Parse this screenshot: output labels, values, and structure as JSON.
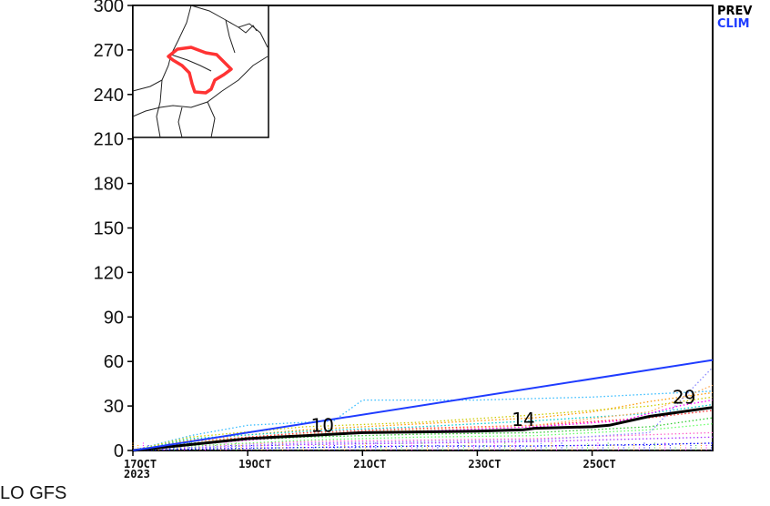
{
  "chart_data": {
    "type": "line",
    "ylim": [
      0,
      300
    ],
    "y_ticks": [
      "0",
      "30",
      "60",
      "90",
      "120",
      "150",
      "180",
      "210",
      "240",
      "270",
      "300"
    ],
    "x_ticks": [
      {
        "day": 17,
        "label": "17OCT",
        "sublabel": "2023"
      },
      {
        "day": 19,
        "label": "19OCT"
      },
      {
        "day": 21,
        "label": "21OCT"
      },
      {
        "day": 23,
        "label": "23OCT"
      },
      {
        "day": 25,
        "label": "25OCT"
      }
    ],
    "x_end_day": 27.1,
    "grid": false,
    "legend": [
      {
        "label": "PREV",
        "color": "#000000"
      },
      {
        "label": "CLIM",
        "color": "#1f3cff"
      }
    ],
    "series": [
      {
        "name": "PREV",
        "color": "#000000",
        "style": "solid",
        "x": [
          17,
          18,
          19,
          19.5,
          20,
          21,
          22,
          23,
          23.8,
          24,
          25,
          25.3,
          26,
          27.1
        ],
        "values": [
          0,
          4,
          8,
          9,
          10,
          12,
          12.5,
          13,
          14,
          15,
          16,
          17,
          23,
          29
        ]
      },
      {
        "name": "CLIM",
        "color": "#1f3cff",
        "style": "solid",
        "x": [
          17,
          27.1
        ],
        "values": [
          0,
          61
        ]
      }
    ],
    "ensemble_members": [
      {
        "color": "#ff66cc",
        "x": [
          17,
          18,
          20,
          22,
          24,
          25.5,
          27.1
        ],
        "values": [
          0,
          3,
          6,
          7,
          8,
          10,
          12
        ]
      },
      {
        "color": "#33bbff",
        "x": [
          17,
          18,
          19,
          20.5,
          21,
          23,
          24,
          25,
          26,
          27.1
        ],
        "values": [
          0,
          10,
          17,
          20,
          34,
          34,
          35,
          36,
          38,
          40
        ]
      },
      {
        "color": "#ff9900",
        "x": [
          17,
          18,
          20,
          22,
          24,
          25,
          26,
          27.1
        ],
        "values": [
          0,
          7,
          14,
          18,
          22,
          26,
          33,
          39
        ]
      },
      {
        "color": "#33cc33",
        "x": [
          17,
          18,
          20,
          22,
          24,
          26,
          27.1
        ],
        "values": [
          0,
          5,
          9,
          11,
          12,
          16,
          22
        ]
      },
      {
        "color": "#aa33ff",
        "x": [
          17,
          18,
          20,
          22,
          24,
          26,
          27.1
        ],
        "values": [
          0,
          2,
          4,
          5,
          6,
          8,
          9
        ]
      },
      {
        "color": "#0000ff",
        "x": [
          17,
          18,
          20,
          22,
          24,
          26,
          27.1
        ],
        "values": [
          0,
          1,
          2,
          3,
          3,
          4,
          5
        ]
      },
      {
        "color": "#ff3333",
        "x": [
          17,
          18,
          20,
          22,
          24,
          26,
          27.1
        ],
        "values": [
          0,
          6,
          12,
          15,
          17,
          22,
          27
        ]
      },
      {
        "color": "#00cccc",
        "x": [
          17,
          18,
          20,
          22,
          24,
          26,
          27.1
        ],
        "values": [
          0,
          8,
          13,
          16,
          20,
          25,
          31
        ]
      },
      {
        "color": "#cccc00",
        "x": [
          17,
          18,
          20,
          22,
          24,
          26,
          27.1
        ],
        "values": [
          0,
          9,
          16,
          19,
          24,
          30,
          36
        ]
      },
      {
        "color": "#ff00ff",
        "x": [
          17,
          18,
          20,
          22,
          24,
          25.5,
          26.5,
          27.1
        ],
        "values": [
          0,
          4,
          10,
          13,
          16,
          20,
          30,
          34
        ]
      },
      {
        "color": "#66ff66",
        "x": [
          17,
          18,
          20,
          22,
          24,
          26,
          27.1
        ],
        "values": [
          0,
          3,
          7,
          9,
          10,
          14,
          18
        ]
      },
      {
        "color": "#ffaa55",
        "x": [
          17,
          18,
          20,
          22,
          24,
          26,
          27.1
        ],
        "values": [
          0,
          6,
          11,
          14,
          17,
          26,
          44
        ]
      },
      {
        "color": "#8888ff",
        "x": [
          17,
          18,
          20,
          22,
          24,
          26,
          27.1
        ],
        "values": [
          0,
          2,
          5,
          6,
          7,
          12,
          56
        ]
      }
    ],
    "annotations": [
      {
        "text": "10",
        "x": 20.1,
        "y": 10
      },
      {
        "text": "14",
        "x": 23.6,
        "y": 14
      },
      {
        "text": "29",
        "x": 26.4,
        "y": 29
      }
    ]
  },
  "footer_text": "LO GFS"
}
